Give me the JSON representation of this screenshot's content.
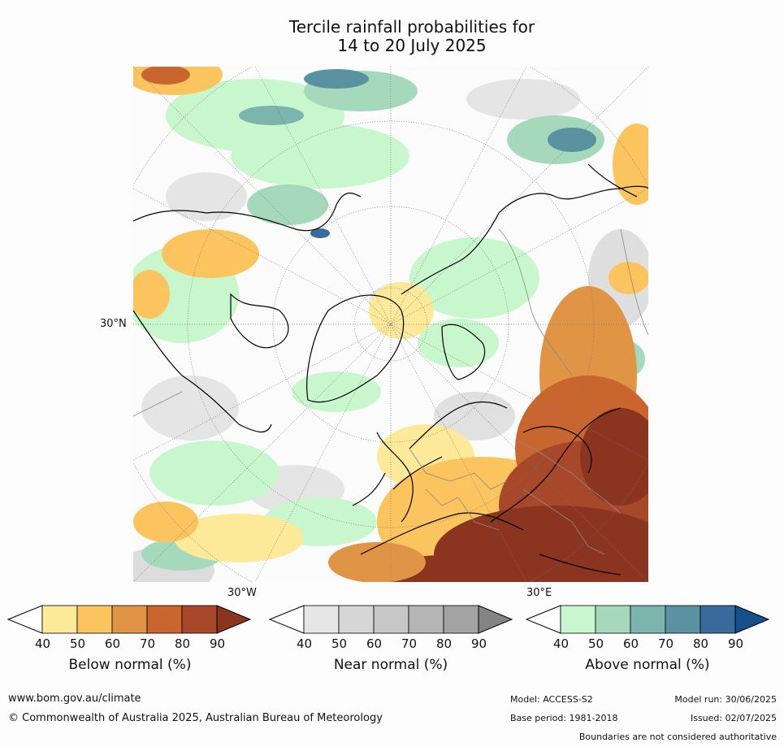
{
  "title": {
    "line1": "Tercile rainfall probabilities for",
    "line2": "14 to 20 July 2025"
  },
  "map": {
    "lat_label": "30°N",
    "lon_labels": {
      "west": "30°W",
      "east": "30°E"
    }
  },
  "colorbars": [
    {
      "title": "Below normal (%)",
      "ticks": [
        "40",
        "50",
        "60",
        "70",
        "80",
        "90"
      ],
      "colors": [
        "#ffffff",
        "#fde99a",
        "#fbc45f",
        "#e09446",
        "#c9652f",
        "#a8482a",
        "#8b3520"
      ]
    },
    {
      "title": "Near normal (%)",
      "ticks": [
        "40",
        "50",
        "60",
        "70",
        "80",
        "90"
      ],
      "colors": [
        "#ffffff",
        "#e6e6e6",
        "#d6d6d6",
        "#c7c7c7",
        "#b5b5b5",
        "#a3a3a3",
        "#848484"
      ]
    },
    {
      "title": "Above normal (%)",
      "ticks": [
        "40",
        "50",
        "60",
        "70",
        "80",
        "90"
      ],
      "colors": [
        "#ffffff",
        "#c9f7cd",
        "#a6d9bb",
        "#7bb5ad",
        "#5a92a2",
        "#386a9b",
        "#15508d"
      ]
    }
  ],
  "footer": {
    "url": "www.bom.gov.au/climate",
    "copyright": "© Commonwealth of Australia 2025, Australian Bureau of Meteorology",
    "model": "Model: ACCESS-S2",
    "base_period": "Base period: 1981-2018",
    "model_run": "Model run: 30/06/2025",
    "issued": "Issued: 02/07/2025",
    "boundaries": "Boundaries are not considered authoritative"
  }
}
